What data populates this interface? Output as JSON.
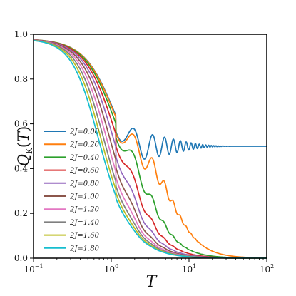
{
  "chart_data": {
    "type": "line",
    "xlabel": "T",
    "ylabel": "Q_K(T)",
    "xscale": "log",
    "xlim": [
      0.1,
      100
    ],
    "ylim": [
      0.0,
      1.0
    ],
    "x_ticks": [
      {
        "value": 0.1,
        "label": "10^-1",
        "base": "10",
        "exp": "−1"
      },
      {
        "value": 1,
        "label": "10^0",
        "base": "10",
        "exp": "0"
      },
      {
        "value": 10,
        "label": "10^1",
        "base": "10",
        "exp": "1"
      },
      {
        "value": 100,
        "label": "10^2",
        "base": "10",
        "exp": "2"
      }
    ],
    "y_ticks": [
      "0.0",
      "0.2",
      "0.4",
      "0.6",
      "0.8",
      "1.0"
    ],
    "grid": false,
    "legend_position": "lower-left",
    "series": [
      {
        "name": "2J=0.00",
        "color": "#1f77b4",
        "J": 0.0
      },
      {
        "name": "2J=0.20",
        "color": "#ff7f0e",
        "J": 0.2
      },
      {
        "name": "2J=0.40",
        "color": "#2ca02c",
        "J": 0.4
      },
      {
        "name": "2J=0.60",
        "color": "#d62728",
        "J": 0.6
      },
      {
        "name": "2J=0.80",
        "color": "#9467bd",
        "J": 0.8
      },
      {
        "name": "2J=1.00",
        "color": "#8c564b",
        "J": 1.0
      },
      {
        "name": "2J=1.20",
        "color": "#e377c2",
        "J": 1.2
      },
      {
        "name": "2J=1.40",
        "color": "#7f7f7f",
        "J": 1.4
      },
      {
        "name": "2J=1.60",
        "color": "#bcbd22",
        "J": 1.6
      },
      {
        "name": "2J=1.80",
        "color": "#17becf",
        "J": 1.8
      }
    ]
  }
}
